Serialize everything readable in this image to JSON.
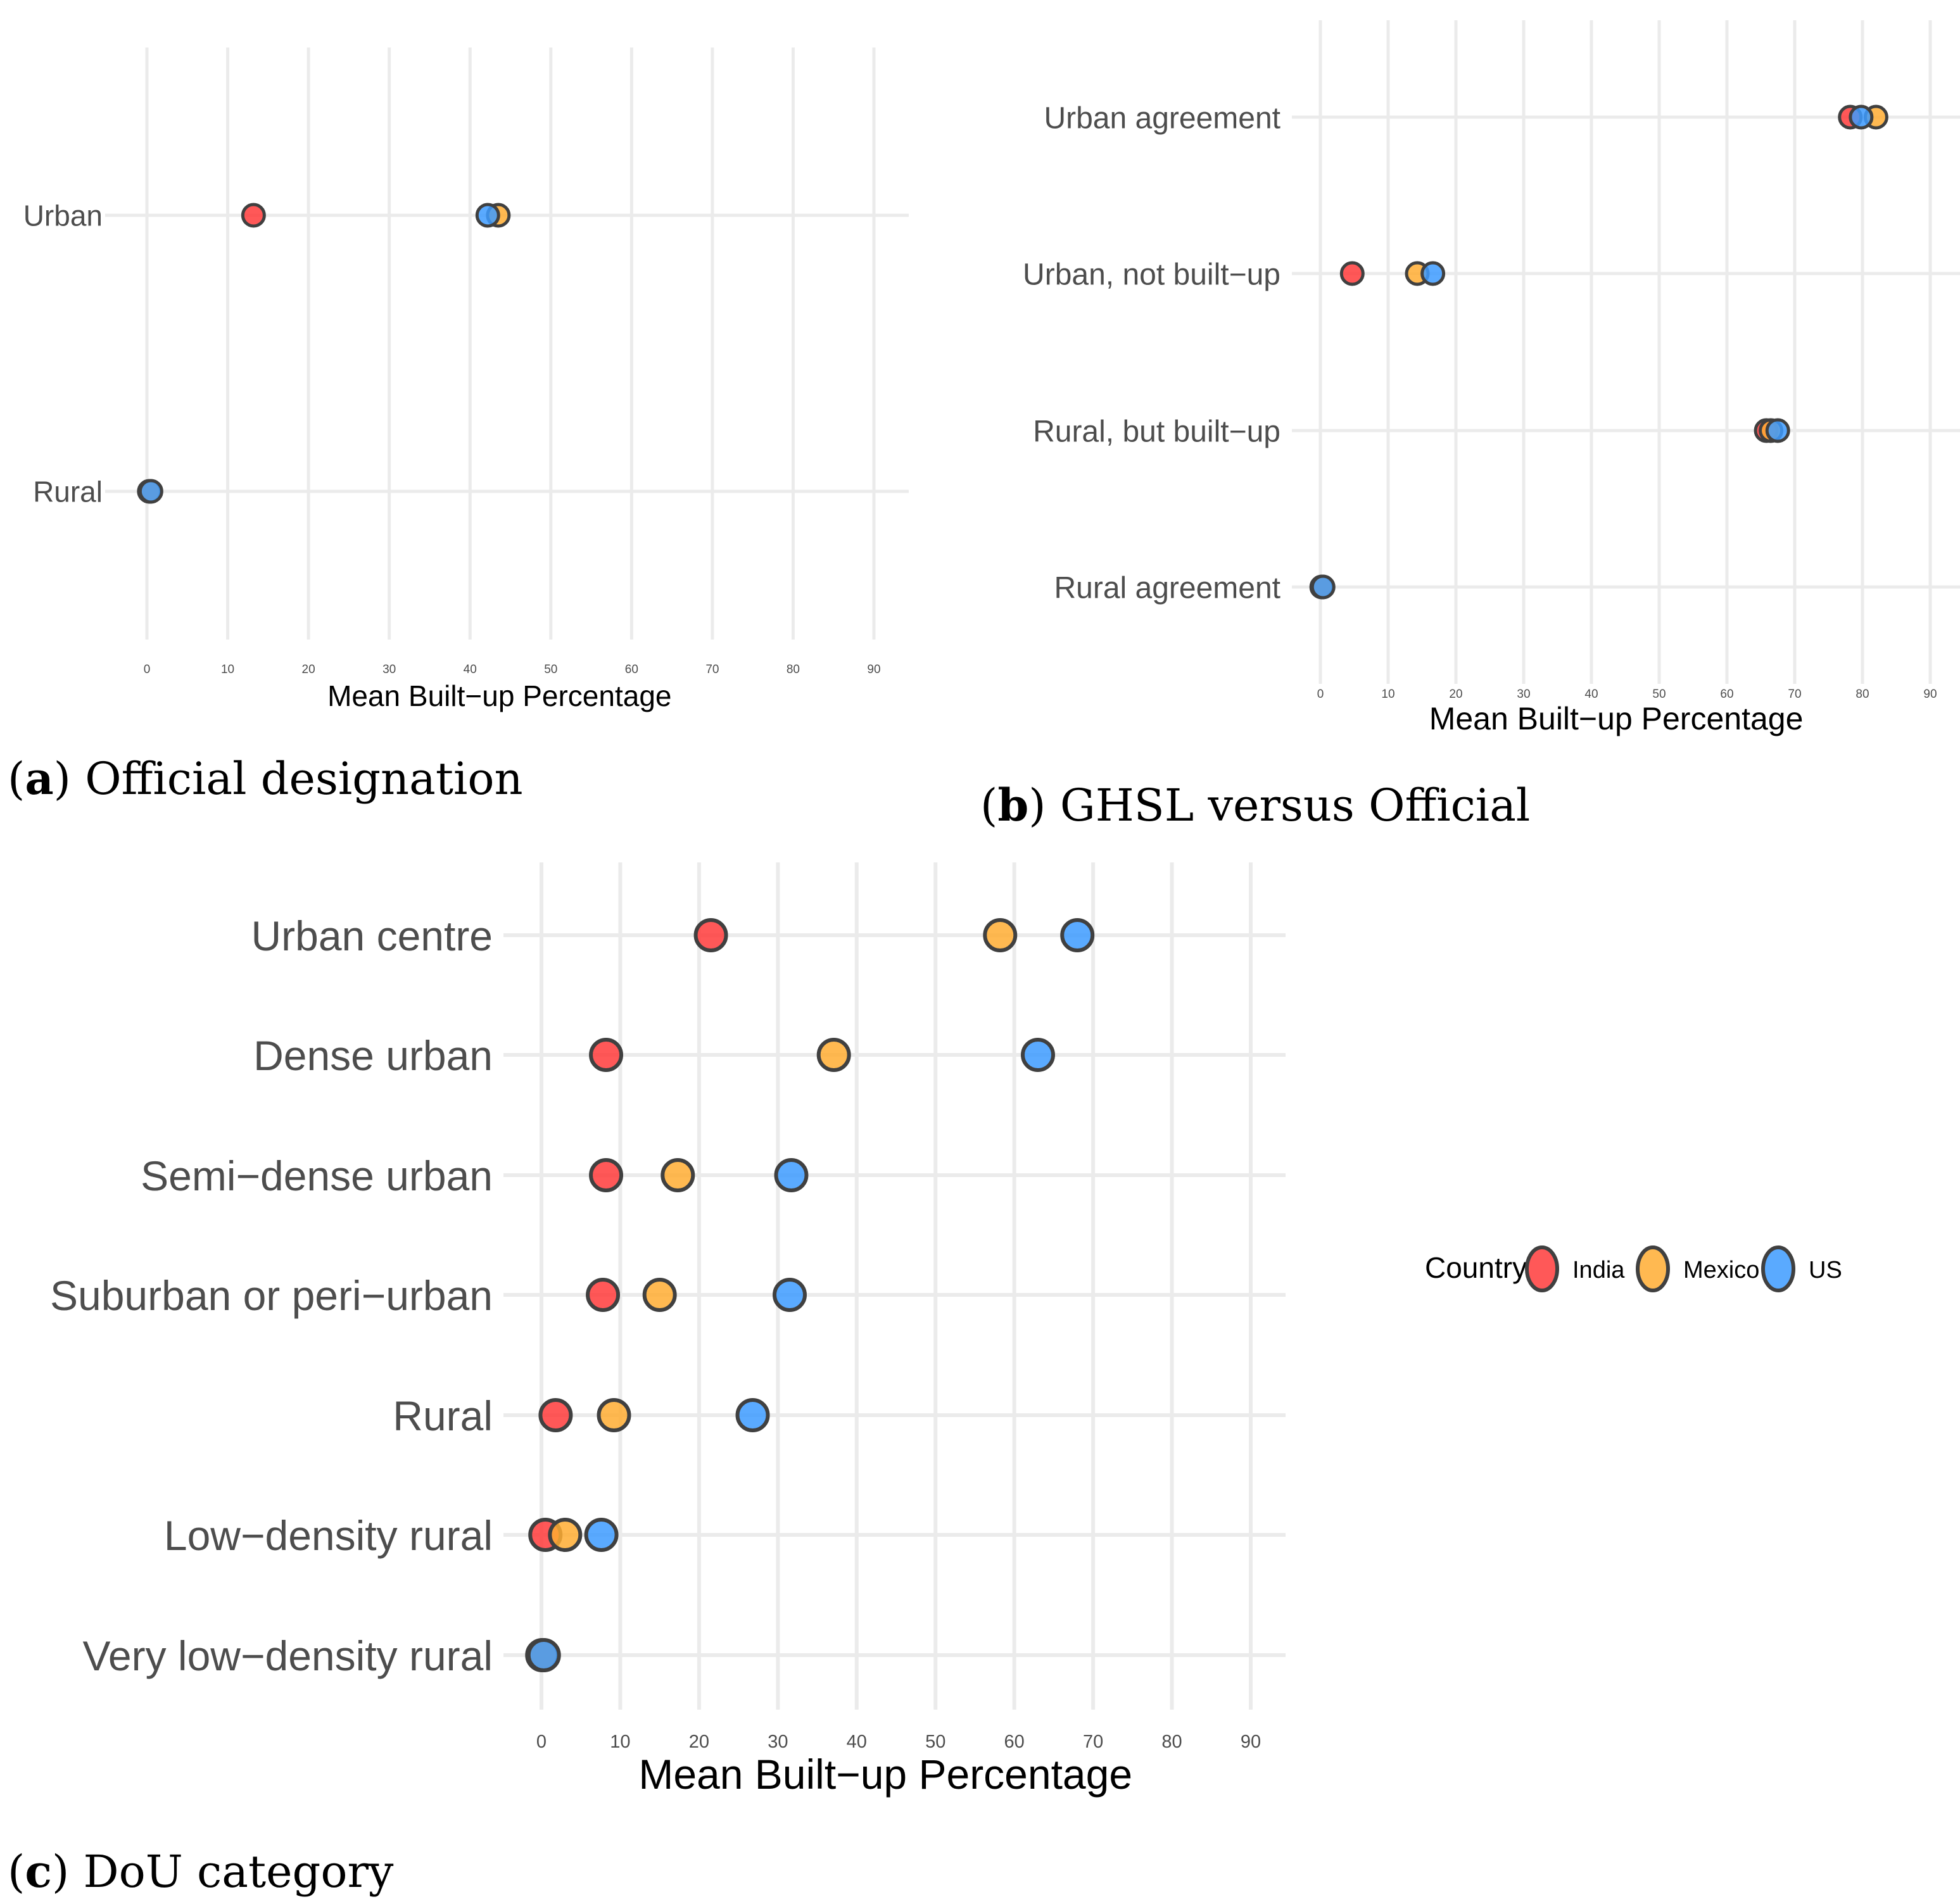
{
  "colors": {
    "India": "#ff3b3b",
    "Mexico": "#ffad33",
    "US": "#3d9bff",
    "outline": "#404040",
    "grid": "#ebebeb"
  },
  "legend": {
    "title": "Country",
    "items": [
      {
        "label": "India",
        "color": "#ff3b3b"
      },
      {
        "label": "Mexico",
        "color": "#ffad33"
      },
      {
        "label": "US",
        "color": "#3d9bff"
      }
    ]
  },
  "captions": {
    "a": {
      "letter": "a",
      "text": ") Official designation"
    },
    "b": {
      "letter": "b",
      "text": ") GHSL versus Official"
    },
    "c": {
      "letter": "c",
      "text": ") DoU category"
    }
  },
  "chart_data": [
    {
      "type": "scatter",
      "panel": "a",
      "xlabel": "Mean Built−up Percentage",
      "ylabel": "",
      "xlim": [
        0,
        90
      ],
      "xticks": [
        0,
        10,
        20,
        30,
        40,
        50,
        60,
        70,
        80,
        90
      ],
      "categories": [
        "Urban",
        "Rural"
      ],
      "series": [
        {
          "name": "India",
          "values": [
            13.2,
            0.3
          ]
        },
        {
          "name": "Mexico",
          "values": [
            43.5,
            0.4
          ]
        },
        {
          "name": "US",
          "values": [
            42.2,
            0.5
          ]
        }
      ],
      "grid": true
    },
    {
      "type": "scatter",
      "panel": "b",
      "xlabel": "Mean Built−up Percentage",
      "ylabel": "",
      "xlim": [
        0,
        90
      ],
      "xticks": [
        0,
        10,
        20,
        30,
        40,
        50,
        60,
        70,
        80,
        90
      ],
      "categories": [
        "Urban agreement",
        "Urban, not built−up",
        "Rural, but built−up",
        "Rural agreement"
      ],
      "series": [
        {
          "name": "India",
          "values": [
            78.2,
            4.7,
            65.8,
            0.2
          ]
        },
        {
          "name": "Mexico",
          "values": [
            82.0,
            14.3,
            66.5,
            0.3
          ]
        },
        {
          "name": "US",
          "values": [
            79.8,
            16.6,
            67.5,
            0.4
          ]
        }
      ],
      "grid": true
    },
    {
      "type": "scatter",
      "panel": "c",
      "xlabel": "Mean Built−up Percentage",
      "ylabel": "",
      "xlim": [
        0,
        90
      ],
      "xticks": [
        0,
        10,
        20,
        30,
        40,
        50,
        60,
        70,
        80,
        90
      ],
      "categories": [
        "Urban centre",
        "Dense urban",
        "Semi−dense urban",
        "Suburban or peri−urban",
        "Rural",
        "Low−density rural",
        "Very low−density rural"
      ],
      "series": [
        {
          "name": "India",
          "values": [
            21.5,
            8.2,
            8.2,
            7.8,
            1.8,
            0.5,
            0.1
          ]
        },
        {
          "name": "Mexico",
          "values": [
            58.2,
            37.1,
            17.3,
            15.0,
            9.2,
            3.0,
            0.2
          ]
        },
        {
          "name": "US",
          "values": [
            68.0,
            63.0,
            31.7,
            31.5,
            26.8,
            7.6,
            0.3
          ]
        }
      ],
      "grid": true,
      "legend": "right"
    }
  ]
}
